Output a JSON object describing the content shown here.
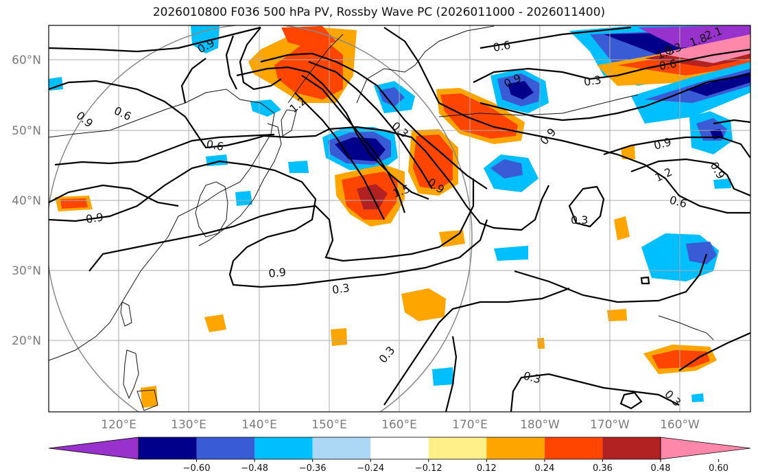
{
  "title": "2026010800 F036 500 hPa PV, Rossby Wave PC (2026011000 - 2026011400)",
  "map": {
    "lat_labels": [
      "60°N",
      "50°N",
      "40°N",
      "30°N",
      "20°N"
    ],
    "lon_labels": [
      "120°E",
      "130°E",
      "140°E",
      "150°E",
      "160°E",
      "170°E",
      "180°W",
      "170°W",
      "160°W"
    ]
  },
  "contour_labels": [
    "0.9",
    "0.6",
    "0.6",
    "0.9",
    "0.6",
    "0.9",
    "0.3",
    "1.5",
    "0.9",
    "0.3",
    "0.9",
    "0.9",
    "0.3",
    "0.9",
    "0.3",
    "1.2",
    "0.9",
    "1.2",
    "0.6",
    "0.3",
    "0.6",
    "0.3",
    "1.5",
    "1.8",
    "2.1",
    "0.9",
    "0.3",
    "0.3"
  ],
  "colorbar": {
    "colors": [
      "#9932cc",
      "#00008b",
      "#3a5bd6",
      "#00bfff",
      "#add8f5",
      "#ffffff",
      "#fff08a",
      "#ffa500",
      "#ff4500",
      "#b22222",
      "#ff88aa"
    ],
    "tick_labels": [
      "−0.60",
      "−0.48",
      "−0.36",
      "−0.24",
      "−0.12",
      "0.12",
      "0.24",
      "0.36",
      "0.48",
      "0.60"
    ]
  }
}
